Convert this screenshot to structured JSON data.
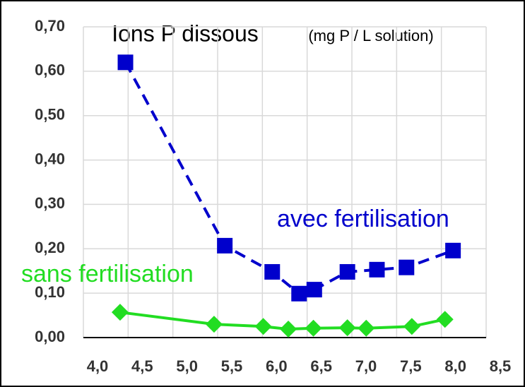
{
  "chart_data": {
    "type": "line",
    "title": "Ions P dissous",
    "subtitle": "(mg P / L solution)",
    "series": [
      {
        "name": "avec fertilisation",
        "color": "#0000cc",
        "marker": "square",
        "dash": true,
        "x": [
          4.47,
          5.58,
          6.11,
          6.41,
          6.58,
          6.95,
          7.28,
          7.61,
          8.13
        ],
        "values": [
          0.62,
          0.207,
          0.148,
          0.099,
          0.108,
          0.148,
          0.153,
          0.158,
          0.196
        ]
      },
      {
        "name": "sans fertilisation",
        "color": "#22dd22",
        "marker": "diamond",
        "dash": false,
        "x": [
          4.41,
          5.46,
          6.01,
          6.29,
          6.57,
          6.95,
          7.16,
          7.67,
          8.04
        ],
        "values": [
          0.057,
          0.03,
          0.025,
          0.019,
          0.021,
          0.022,
          0.021,
          0.025,
          0.041
        ]
      }
    ],
    "xlim": [
      4,
      8.5
    ],
    "xticks": [
      {
        "value": 4,
        "label": "4,0"
      },
      {
        "value": 4.5,
        "label": "4,5"
      },
      {
        "value": 5,
        "label": "5,0"
      },
      {
        "value": 5.5,
        "label": "5,5"
      },
      {
        "value": 6,
        "label": "6,0"
      },
      {
        "value": 6.5,
        "label": "6,5"
      },
      {
        "value": 7,
        "label": "7,0"
      },
      {
        "value": 7.5,
        "label": "7,5"
      },
      {
        "value": 8,
        "label": "8,0"
      },
      {
        "value": 8.5,
        "label": "8,5"
      }
    ],
    "ylim": [
      0,
      0.7
    ],
    "yticks": [
      {
        "value": 0,
        "label": "0,00"
      },
      {
        "value": 0.1,
        "label": "0,10"
      },
      {
        "value": 0.2,
        "label": "0,20"
      },
      {
        "value": 0.3,
        "label": "0,30"
      },
      {
        "value": 0.4,
        "label": "0,40"
      },
      {
        "value": 0.5,
        "label": "0,50"
      },
      {
        "value": 0.6,
        "label": "0,60"
      },
      {
        "value": 0.7,
        "label": "0,70"
      }
    ],
    "grid": true
  }
}
